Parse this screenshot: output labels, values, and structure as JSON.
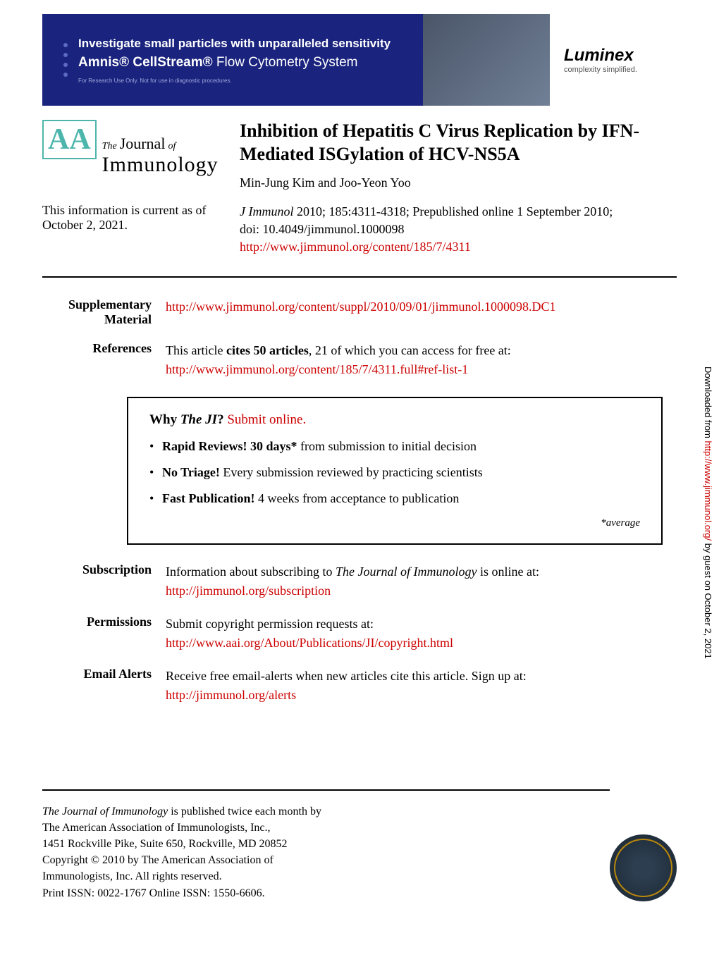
{
  "banner": {
    "headline": "Investigate small particles with unparalleled sensitivity",
    "product_bold": "Amnis® CellStream®",
    "product_light": " Flow Cytometry System",
    "disclaimer": "For Research Use Only. Not for use in diagnostic procedures.",
    "brand": "Luminex",
    "tagline": "complexity simplified.",
    "bg_color": "#1a237e",
    "text_color": "#ffffff"
  },
  "journal": {
    "the": "The",
    "journal": "Journal",
    "of": "of",
    "name": "Immunology",
    "badge": "AA"
  },
  "article": {
    "title": "Inhibition of Hepatitis C Virus Replication by IFN-Mediated ISGylation of HCV-NS5A",
    "authors": "Min-Jung Kim and Joo-Yeon Yoo"
  },
  "currency": {
    "label": "This information is current as of October 2, 2021.",
    "citation_journal": "J Immunol",
    "citation_rest": " 2010; 185:4311-4318; Prepublished online 1 September 2010;",
    "doi": "doi: 10.4049/jimmunol.1000098",
    "url": "http://www.jimmunol.org/content/185/7/4311"
  },
  "meta": {
    "supplementary": {
      "label": "Supplementary Material",
      "url": "http://www.jimmunol.org/content/suppl/2010/09/01/jimmunol.1000098.DC1"
    },
    "references": {
      "label": "References",
      "text_pre": "This article ",
      "text_bold": "cites 50 articles",
      "text_post": ", 21 of which you can access for free at:",
      "url": "http://www.jimmunol.org/content/185/7/4311.full#ref-list-1"
    },
    "subscription": {
      "label": "Subscription",
      "text_pre": "Information about subscribing to ",
      "text_italic": "The Journal of Immunology",
      "text_post": " is online at:",
      "url": "http://jimmunol.org/subscription"
    },
    "permissions": {
      "label": "Permissions",
      "text": "Submit copyright permission requests at:",
      "url": "http://www.aai.org/About/Publications/JI/copyright.html"
    },
    "email_alerts": {
      "label": "Email Alerts",
      "text": "Receive free email-alerts when new articles cite this article. Sign up at:",
      "url": "http://jimmunol.org/alerts"
    }
  },
  "why_box": {
    "title_pre": "Why ",
    "title_italic": "The JI",
    "title_post": "? ",
    "submit_link": "Submit online.",
    "items": [
      {
        "bold": "Rapid Reviews! 30 days*",
        "rest": " from submission to initial decision"
      },
      {
        "bold": "No Triage!",
        "rest": " Every submission reviewed by practicing scientists"
      },
      {
        "bold": "Fast Publication!",
        "rest": " 4 weeks from acceptance to publication"
      }
    ],
    "footnote": "*average"
  },
  "sidebar": {
    "text_pre": "Downloaded from ",
    "url": "http://www.jimmunol.org/",
    "text_post": " by guest on October 2, 2021"
  },
  "footer": {
    "line1_italic": "The Journal of Immunology",
    "line1_rest": " is published twice each month by",
    "line2": "The American Association of Immunologists, Inc.,",
    "line3": "1451 Rockville Pike, Suite 650, Rockville, MD 20852",
    "line4": "Copyright © 2010 by The American Association of",
    "line5": "Immunologists, Inc. All rights reserved.",
    "line6": "Print ISSN: 0022-1767 Online ISSN: 1550-6606."
  },
  "colors": {
    "link": "#cc0000",
    "banner_bg": "#1a237e",
    "logo_teal": "#4db6ac"
  }
}
